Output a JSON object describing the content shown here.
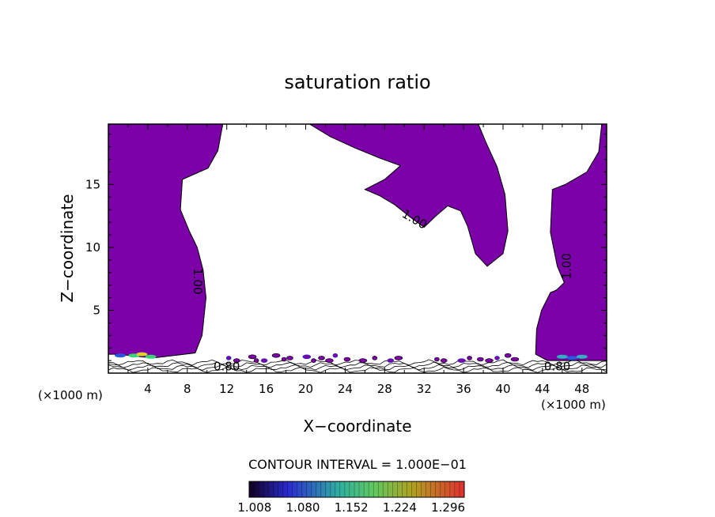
{
  "chart_data": {
    "type": "contour",
    "title": "saturation ratio",
    "xlabel": "X−coordinate",
    "ylabel": "Z−coordinate",
    "x_unit_label": "(×1000 m)",
    "x_ticks": [
      4,
      8,
      12,
      16,
      20,
      24,
      28,
      32,
      36,
      40,
      44,
      48
    ],
    "y_ticks": [
      5,
      10,
      15
    ],
    "xlim": [
      0,
      50.5
    ],
    "ylim": [
      0,
      19.8
    ],
    "contour_interval_text": "CONTOUR INTERVAL = 1.000E−01",
    "contour_labels": [
      {
        "text": "1.00",
        "x": 31.0,
        "y": 12.2,
        "angle": 30
      },
      {
        "text": "1.00",
        "x": 9.0,
        "y": 7.3,
        "angle": 90
      },
      {
        "text": "1.00",
        "x": 46.5,
        "y": 8.5,
        "angle": -90
      },
      {
        "text": "0.80",
        "x": 12.0,
        "y": 0.5,
        "angle": 0
      },
      {
        "text": "0.80",
        "x": 45.5,
        "y": 0.5,
        "angle": 0
      }
    ],
    "colorbar": {
      "ticks": [
        "1.008",
        "1.080",
        "1.152",
        "1.224",
        "1.296"
      ],
      "range": [
        1.0,
        1.32
      ]
    },
    "supersaturated_fill_color": "#7b00a8",
    "regions": [
      {
        "name": "left",
        "points": [
          [
            0,
            19.8
          ],
          [
            11.6,
            19.8
          ],
          [
            11.1,
            17.7
          ],
          [
            10.1,
            16.3
          ],
          [
            7.5,
            15.4
          ],
          [
            7.3,
            13.0
          ],
          [
            8.2,
            11.3
          ],
          [
            9.0,
            10.0
          ],
          [
            9.6,
            8.2
          ],
          [
            9.9,
            6.0
          ],
          [
            9.5,
            3.0
          ],
          [
            8.8,
            1.6
          ],
          [
            4.5,
            1.2
          ],
          [
            1.0,
            1.5
          ],
          [
            0,
            1.5
          ]
        ]
      },
      {
        "name": "center",
        "points": [
          [
            20.4,
            19.8
          ],
          [
            37.5,
            19.8
          ],
          [
            38.3,
            18.3
          ],
          [
            39.4,
            16.4
          ],
          [
            40.2,
            14.2
          ],
          [
            40.5,
            11.3
          ],
          [
            40.0,
            9.5
          ],
          [
            38.4,
            8.5
          ],
          [
            37.2,
            9.5
          ],
          [
            36.4,
            11.7
          ],
          [
            35.7,
            12.9
          ],
          [
            34.4,
            13.3
          ],
          [
            33.2,
            12.5
          ],
          [
            32.0,
            11.6
          ],
          [
            30.6,
            12.4
          ],
          [
            29.0,
            13.4
          ],
          [
            27.5,
            14.1
          ],
          [
            26.0,
            14.6
          ],
          [
            28.0,
            15.4
          ],
          [
            29.6,
            16.5
          ],
          [
            27.5,
            17.1
          ],
          [
            25.0,
            17.9
          ],
          [
            22.5,
            18.8
          ]
        ]
      },
      {
        "name": "right",
        "points": [
          [
            50.5,
            19.8
          ],
          [
            50.0,
            19.8
          ],
          [
            49.7,
            17.6
          ],
          [
            48.5,
            16.0
          ],
          [
            46.3,
            15.0
          ],
          [
            45.0,
            14.6
          ],
          [
            44.8,
            11.2
          ],
          [
            45.5,
            8.5
          ],
          [
            46.2,
            7.2
          ],
          [
            45.4,
            6.6
          ],
          [
            44.8,
            6.4
          ],
          [
            43.9,
            5.0
          ],
          [
            43.4,
            3.5
          ],
          [
            43.3,
            1.5
          ],
          [
            44.5,
            1.0
          ],
          [
            50.5,
            1.0
          ]
        ]
      }
    ]
  }
}
